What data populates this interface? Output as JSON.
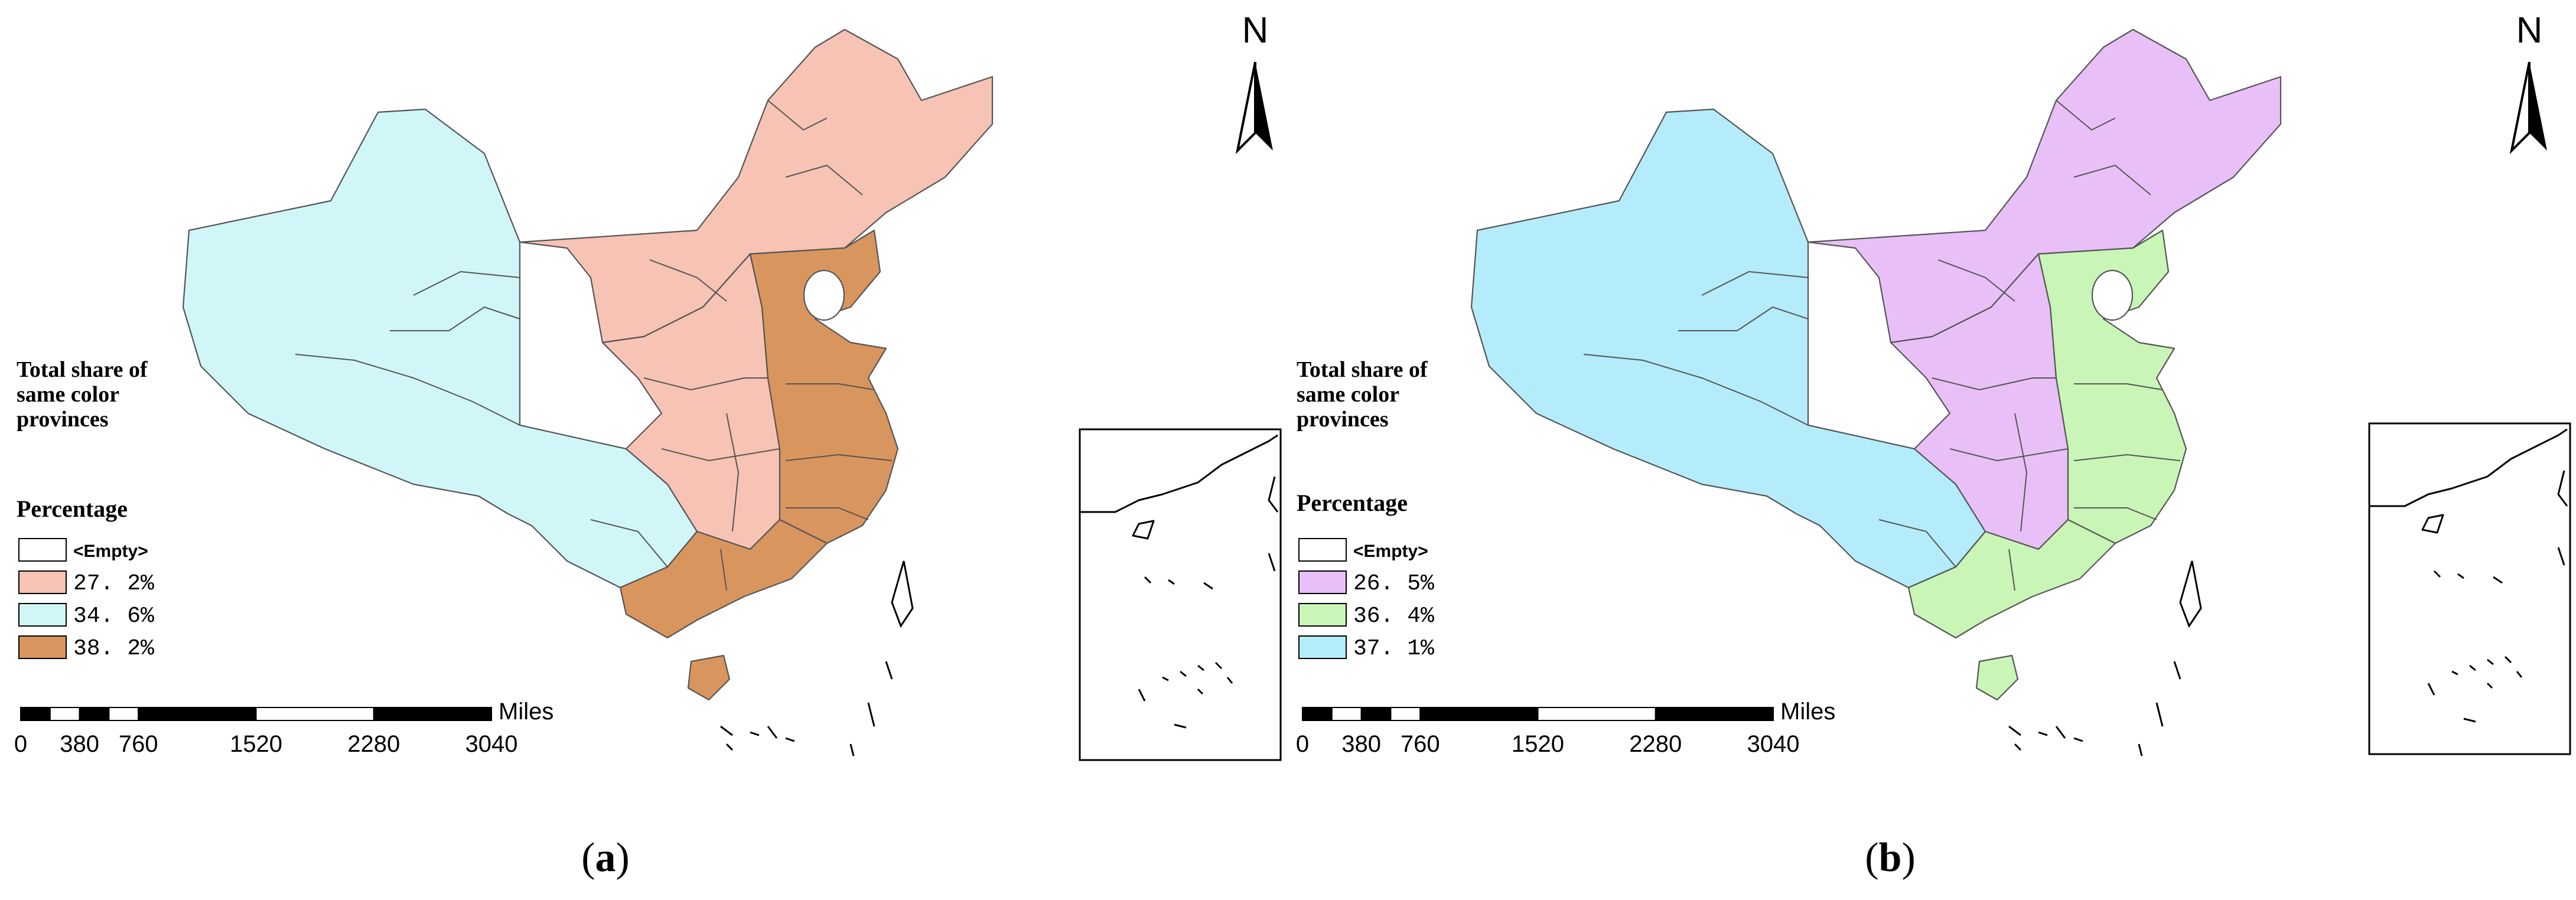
{
  "panels": [
    {
      "id": "a",
      "caption_letter": "a",
      "legend_title": [
        "Total share of",
        "same color",
        "provinces"
      ],
      "legend_subtitle": "Percentage",
      "legend_items": [
        {
          "label": "<Empty>",
          "color": "#ffffff"
        },
        {
          "label": "27. 2%",
          "color": "#f7c3b4"
        },
        {
          "label": "34. 6%",
          "color": "#d0f6f8"
        },
        {
          "label": "38. 2%",
          "color": "#d9955e"
        }
      ],
      "region_colors": {
        "west": "#d0f6f8",
        "north": "#f7c3b4",
        "middle": "#f7c3b4",
        "east": "#d9955e",
        "south": "#d9955e"
      },
      "north_label": "N",
      "scale": {
        "unit": "Miles",
        "ticks": [
          "0",
          "380",
          "760",
          "1520",
          "2280",
          "3040"
        ]
      }
    },
    {
      "id": "b",
      "caption_letter": "b",
      "legend_title": [
        "Total share of",
        "same color",
        "provinces"
      ],
      "legend_subtitle": "Percentage",
      "legend_items": [
        {
          "label": "<Empty>",
          "color": "#ffffff"
        },
        {
          "label": "26. 5%",
          "color": "#e8c0f7"
        },
        {
          "label": "36. 4%",
          "color": "#c9f5b6"
        },
        {
          "label": "37. 1%",
          "color": "#b4ecfb"
        }
      ],
      "region_colors": {
        "west": "#b4ecfb",
        "north": "#e8c0f7",
        "middle": "#e8c0f7",
        "east": "#c9f5b6",
        "south": "#c9f5b6"
      },
      "north_label": "N",
      "scale": {
        "unit": "Miles",
        "ticks": [
          "0",
          "380",
          "760",
          "1520",
          "2280",
          "3040"
        ]
      }
    }
  ]
}
